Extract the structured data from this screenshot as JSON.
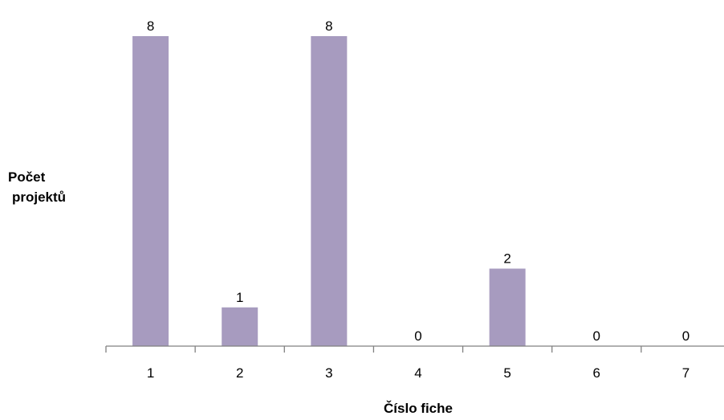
{
  "chart_data": {
    "type": "bar",
    "title": "",
    "xlabel": "Číslo fiche",
    "ylabel_lines": [
      "Počet",
      "projektů"
    ],
    "categories": [
      "1",
      "2",
      "3",
      "4",
      "5",
      "6",
      "7"
    ],
    "values": [
      8,
      1,
      8,
      0,
      2,
      0,
      0
    ],
    "ylim": [
      0,
      8
    ],
    "grid": false,
    "legend": "none",
    "bar_color": "#a79bbf",
    "axis_color": "#808080"
  }
}
